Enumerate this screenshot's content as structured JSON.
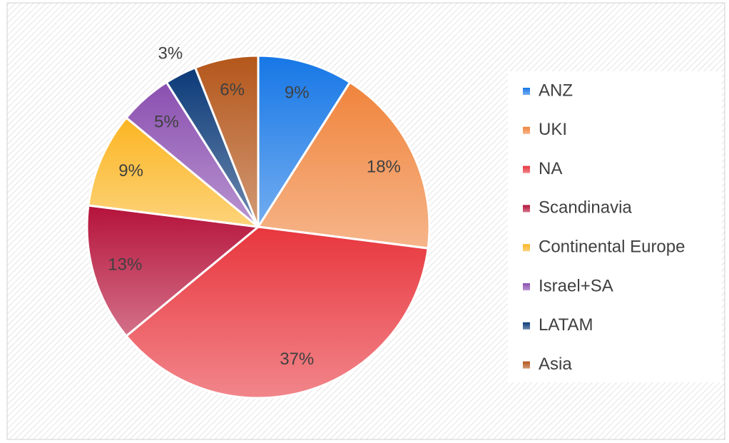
{
  "chart_data": {
    "type": "pie",
    "categories": [
      "ANZ",
      "UKI",
      "NA",
      "Scandinavia",
      "Continental Europe",
      "Israel+SA",
      "LATAM",
      "Asia"
    ],
    "values": [
      9,
      18,
      37,
      13,
      9,
      5,
      3,
      6
    ],
    "value_labels": [
      "9%",
      "18%",
      "37%",
      "13%",
      "9%",
      "5%",
      "3%",
      "6%"
    ],
    "colors": [
      "#1677e6",
      "#f0843c",
      "#e8363d",
      "#b5123a",
      "#fbb522",
      "#8a4fb0",
      "#0b3a78",
      "#b4561a"
    ],
    "legend": "right"
  }
}
